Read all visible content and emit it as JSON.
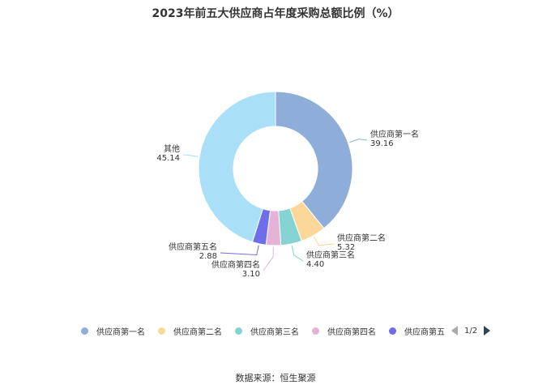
{
  "chart_data": {
    "type": "pie",
    "title": "2023年前五大供应商占年度采购总额比例（%）",
    "categories": [
      "供应商第一名",
      "供应商第二名",
      "供应商第三名",
      "供应商第四名",
      "供应商第五名",
      "其他"
    ],
    "values": [
      39.16,
      5.32,
      4.4,
      3.1,
      2.88,
      45.14
    ],
    "value_labels": [
      "39.16",
      "5.32",
      "4.40",
      "3.10",
      "2.88",
      "45.14"
    ],
    "colors": [
      "#8eadd9",
      "#fbd89a",
      "#86d3d4",
      "#e5b3d8",
      "#6d6ee8",
      "#aadff8"
    ],
    "legend": {
      "placement": "bottom",
      "visible_labels": [
        "供应商第一名",
        "供应商第二名",
        "供应商第三名",
        "供应商第四名",
        "供应商第五"
      ],
      "page_indicator": "1/2"
    }
  },
  "footer": {
    "source": "数据来源：恒生聚源"
  }
}
